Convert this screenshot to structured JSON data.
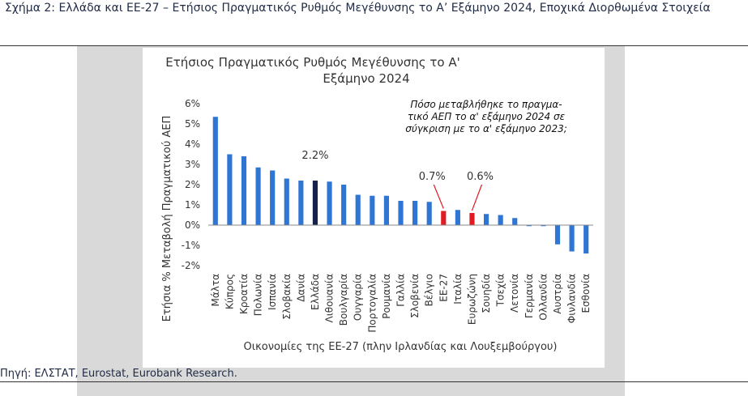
{
  "figure": {
    "title": "Σχήμα 2: Ελλάδα και ΕΕ-27 – Ετήσιος Πραγματικός Ρυθμός Μεγέθυνσης το Α’ Εξάμηνο 2024, Εποχικά Διορθωμένα Στοιχεία",
    "source": "Πηγή: ΕΛΣΤΑΤ, Eurostat, Eurobank Research."
  },
  "chart_data": {
    "type": "bar",
    "title_line1": "Ετήσιος Πραγματικός Ρυθμός Μεγέθυνσης το Α'",
    "title_line2": "Εξάμηνο 2024",
    "xlabel": "Οικονομίες της ΕΕ-27 (πλην Ιρλανδίας και Λουξεμβούργου)",
    "ylabel": "Ετήσια % Μεταβολή Πραγματικού ΑΕΠ",
    "ylim": [
      -2,
      6
    ],
    "yticks": [
      "-2%",
      "-1%",
      "0%",
      "1%",
      "2%",
      "3%",
      "4%",
      "5%",
      "6%"
    ],
    "annotation_lines": [
      "Πόσο μεταβλήθηκε το πραγμα-",
      "τικό ΑΕΠ το α' εξάμηνο 2024 σε",
      "σύγκριση με το α' εξάμηνο 2023;"
    ],
    "categories": [
      "Μάλτα",
      "Κύπρος",
      "Κροατία",
      "Πολωνία",
      "Ισπανία",
      "Σλοβακία",
      "Δανία",
      "Ελλάδα",
      "Λιθουανία",
      "Βουλγαρία",
      "Ουγγαρία",
      "Πορτογαλία",
      "Ρουμανία",
      "Γαλλία",
      "Σλοβενία",
      "Βέλγιο",
      "ΕΕ-27",
      "Ιταλία",
      "Ευρωζώνη",
      "Σουηδία",
      "Τσεχία",
      "Λετονία",
      "Γερμανία",
      "Ολλανδία",
      "Αυστρία",
      "Φινλανδία",
      "Εσθονία"
    ],
    "values": [
      5.35,
      3.5,
      3.4,
      2.85,
      2.7,
      2.3,
      2.2,
      2.2,
      2.15,
      2.0,
      1.5,
      1.45,
      1.45,
      1.2,
      1.2,
      1.15,
      0.7,
      0.75,
      0.6,
      0.55,
      0.5,
      0.35,
      -0.05,
      -0.05,
      -0.95,
      -1.3,
      -1.4
    ],
    "highlights": {
      "Ελλάδα": {
        "color": "#14224b",
        "label": "2.2%"
      },
      "ΕΕ-27": {
        "color": "#e11b22",
        "label": "0.7%"
      },
      "Ευρωζώνη": {
        "color": "#e11b22",
        "label": "0.6%"
      }
    },
    "default_color": "#2e75d4"
  }
}
